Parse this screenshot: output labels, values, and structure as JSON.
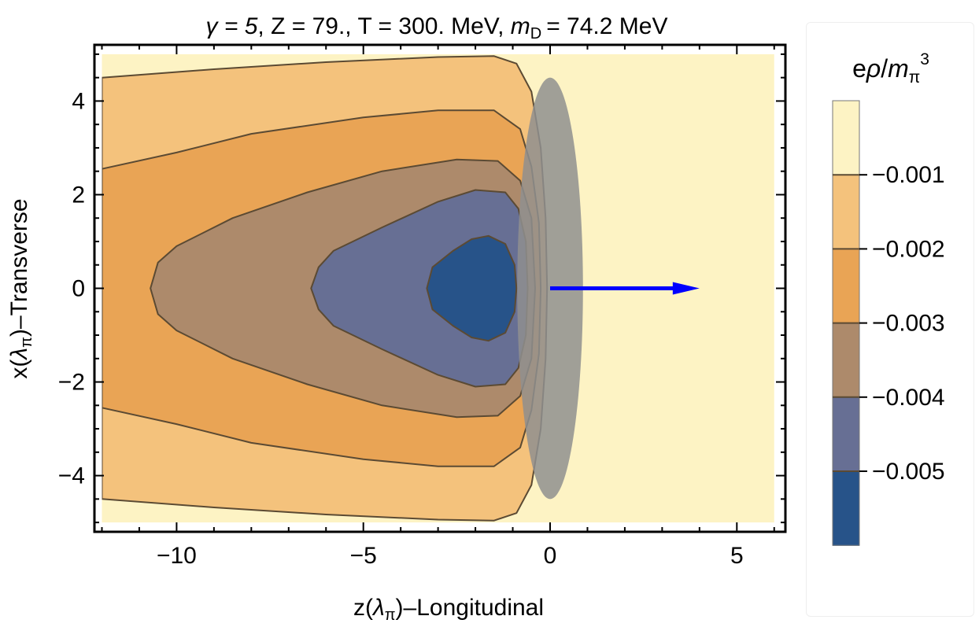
{
  "chart_data": {
    "type": "contour",
    "title_parts": {
      "gamma": "γ = 5",
      "z": "Z = 79.",
      "t": "T = 300. MeV",
      "md_symbol": "m",
      "md_sub": "D",
      "md_value": "= 74.2 MeV"
    },
    "xlabel": {
      "pre": "z(",
      "sym": "λ",
      "sub": "π",
      "post": ")–Longitudinal"
    },
    "ylabel": {
      "pre": "x(",
      "sym": "λ",
      "sub": "π",
      "post": ")–Transverse"
    },
    "xlim": [
      -12.2,
      6.3
    ],
    "ylim": [
      -5.2,
      5.2
    ],
    "x_ticks": [
      {
        "value": -10,
        "label": "−10"
      },
      {
        "value": -5,
        "label": "−5"
      },
      {
        "value": 0,
        "label": "0"
      },
      {
        "value": 5,
        "label": "5"
      }
    ],
    "y_ticks": [
      {
        "value": -4,
        "label": "−4"
      },
      {
        "value": -2,
        "label": "−2"
      },
      {
        "value": 0,
        "label": "0"
      },
      {
        "value": 2,
        "label": "2"
      },
      {
        "value": 4,
        "label": "4"
      }
    ],
    "data_extent": {
      "x": [
        -12,
        6
      ],
      "y": [
        -5,
        5
      ]
    },
    "levels": [
      {
        "value": -0.001,
        "color": "#f4c27c",
        "contour": [
          [
            -12,
            4.5
          ],
          [
            -9,
            4.68
          ],
          [
            -6,
            4.83
          ],
          [
            -3,
            4.94
          ],
          [
            -1.5,
            4.96
          ],
          [
            -0.9,
            4.8
          ],
          [
            -0.5,
            4.2
          ],
          [
            -0.25,
            3.0
          ],
          [
            -0.12,
            1.5
          ],
          [
            -0.08,
            0
          ],
          [
            -0.12,
            -1.5
          ],
          [
            -0.25,
            -3.0
          ],
          [
            -0.5,
            -4.2
          ],
          [
            -0.9,
            -4.8
          ],
          [
            -1.5,
            -4.96
          ],
          [
            -3,
            -4.94
          ],
          [
            -6,
            -4.83
          ],
          [
            -9,
            -4.68
          ],
          [
            -12,
            -4.5
          ]
        ]
      },
      {
        "value": -0.002,
        "color": "#e9a455",
        "contour": [
          [
            -12,
            2.55
          ],
          [
            -10,
            2.9
          ],
          [
            -8,
            3.3
          ],
          [
            -5,
            3.65
          ],
          [
            -3,
            3.8
          ],
          [
            -1.5,
            3.8
          ],
          [
            -0.8,
            3.4
          ],
          [
            -0.5,
            2.6
          ],
          [
            -0.3,
            1.4
          ],
          [
            -0.25,
            0
          ],
          [
            -0.3,
            -1.4
          ],
          [
            -0.5,
            -2.6
          ],
          [
            -0.8,
            -3.4
          ],
          [
            -1.5,
            -3.8
          ],
          [
            -3,
            -3.8
          ],
          [
            -5,
            -3.65
          ],
          [
            -8,
            -3.3
          ],
          [
            -10,
            -2.9
          ],
          [
            -12,
            -2.55
          ]
        ]
      },
      {
        "value": -0.003,
        "color": "#ad8a6b",
        "contour": [
          [
            -10.7,
            0
          ],
          [
            -10.5,
            0.55
          ],
          [
            -10,
            0.9
          ],
          [
            -8.5,
            1.5
          ],
          [
            -6.5,
            2.05
          ],
          [
            -4.5,
            2.5
          ],
          [
            -2.5,
            2.75
          ],
          [
            -1.4,
            2.72
          ],
          [
            -0.8,
            2.3
          ],
          [
            -0.5,
            1.5
          ],
          [
            -0.4,
            0
          ],
          [
            -0.5,
            -1.5
          ],
          [
            -0.8,
            -2.3
          ],
          [
            -1.4,
            -2.72
          ],
          [
            -2.5,
            -2.75
          ],
          [
            -4.5,
            -2.5
          ],
          [
            -6.5,
            -2.05
          ],
          [
            -8.5,
            -1.5
          ],
          [
            -10,
            -0.9
          ],
          [
            -10.5,
            -0.55
          ]
        ]
      },
      {
        "value": -0.004,
        "color": "#676f94",
        "contour": [
          [
            -6.4,
            0
          ],
          [
            -6.2,
            0.45
          ],
          [
            -5.8,
            0.8
          ],
          [
            -4.5,
            1.3
          ],
          [
            -3,
            1.85
          ],
          [
            -2,
            2.1
          ],
          [
            -1.2,
            2.05
          ],
          [
            -0.85,
            1.7
          ],
          [
            -0.65,
            1.0
          ],
          [
            -0.6,
            0
          ],
          [
            -0.65,
            -1.0
          ],
          [
            -0.85,
            -1.7
          ],
          [
            -1.2,
            -2.05
          ],
          [
            -2,
            -2.1
          ],
          [
            -3,
            -1.85
          ],
          [
            -4.5,
            -1.3
          ],
          [
            -5.8,
            -0.8
          ],
          [
            -6.2,
            -0.45
          ]
        ]
      },
      {
        "value": -0.005,
        "color": "#275389",
        "contour": [
          [
            -3.3,
            0
          ],
          [
            -3.15,
            0.45
          ],
          [
            -2.6,
            0.8
          ],
          [
            -2.1,
            1.05
          ],
          [
            -1.65,
            1.12
          ],
          [
            -1.2,
            0.95
          ],
          [
            -0.95,
            0.5
          ],
          [
            -0.9,
            0
          ],
          [
            -0.95,
            -0.5
          ],
          [
            -1.2,
            -0.95
          ],
          [
            -1.65,
            -1.12
          ],
          [
            -2.1,
            -1.05
          ],
          [
            -2.6,
            -0.8
          ],
          [
            -3.15,
            -0.45
          ]
        ]
      }
    ],
    "background_color": "#fdf3c4",
    "nucleus": {
      "cx": 0,
      "cy": 0,
      "rx": 0.88,
      "ry": 4.5,
      "color": "#8f8f8f",
      "opacity": 0.85
    },
    "arrow": {
      "from": [
        0,
        0
      ],
      "to": [
        4,
        0
      ],
      "color": "#0000ff"
    },
    "legend": {
      "title_parts": {
        "e": "e",
        "rho": "ρ",
        "slash": "/",
        "m": "m",
        "sub": "π",
        "sup": "3"
      },
      "colors_top_to_bottom": [
        "#fdf3c4",
        "#f4c27c",
        "#e9a455",
        "#ad8a6b",
        "#676f94",
        "#275389"
      ],
      "boundary_labels": [
        "−0.001",
        "−0.002",
        "−0.003",
        "−0.004",
        "−0.005"
      ]
    }
  }
}
